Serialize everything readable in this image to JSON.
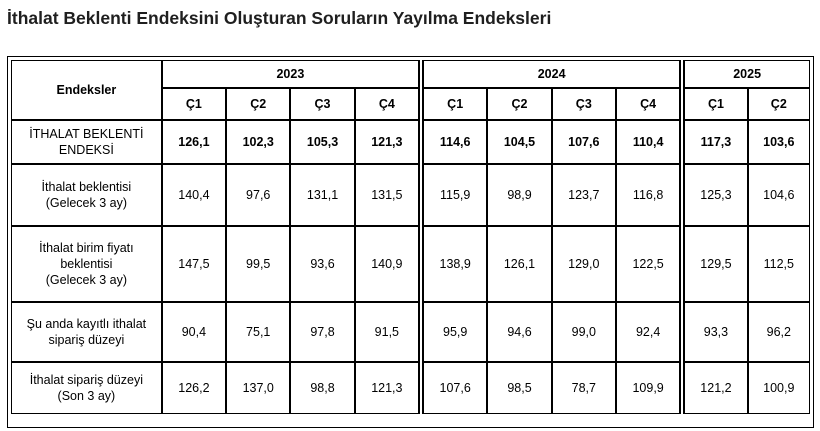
{
  "title": "İthalat Beklenti Endeksini Oluşturan Soruların Yayılma Endeksleri",
  "table": {
    "corner_label": "Endeksler",
    "years": [
      "2023",
      "2024",
      "2025"
    ],
    "quarters": [
      "Ç1",
      "Ç2",
      "Ç3",
      "Ç4",
      "Ç1",
      "Ç2",
      "Ç3",
      "Ç4",
      "Ç1",
      "Ç2"
    ],
    "rows": [
      {
        "label_line1": "İTHALAT BEKLENTİ",
        "label_line2": "ENDEKSİ",
        "label_line3": "",
        "values": [
          "126,1",
          "102,3",
          "105,3",
          "121,3",
          "114,6",
          "104,5",
          "107,6",
          "110,4",
          "117,3",
          "103,6"
        ]
      },
      {
        "label_line1": "İthalat beklentisi",
        "label_line2": "(Gelecek 3 ay)",
        "label_line3": "",
        "values": [
          "140,4",
          "97,6",
          "131,1",
          "131,5",
          "115,9",
          "98,9",
          "123,7",
          "116,8",
          "125,3",
          "104,6"
        ]
      },
      {
        "label_line1": "İthalat birim fiyatı",
        "label_line2": "beklentisi",
        "label_line3": "(Gelecek 3 ay)",
        "values": [
          "147,5",
          "99,5",
          "93,6",
          "140,9",
          "138,9",
          "126,1",
          "129,0",
          "122,5",
          "129,5",
          "112,5"
        ]
      },
      {
        "label_line1": "Şu anda kayıtlı ithalat",
        "label_line2": "sipariş düzeyi",
        "label_line3": "",
        "values": [
          "90,4",
          "75,1",
          "97,8",
          "91,5",
          "95,9",
          "94,6",
          "99,0",
          "92,4",
          "93,3",
          "96,2"
        ]
      },
      {
        "label_line1": "İthalat sipariş düzeyi",
        "label_line2": "(Son 3 ay)",
        "label_line3": "",
        "values": [
          "126,2",
          "137,0",
          "98,8",
          "121,3",
          "107,6",
          "98,5",
          "78,7",
          "109,9",
          "121,2",
          "100,9"
        ]
      }
    ]
  }
}
